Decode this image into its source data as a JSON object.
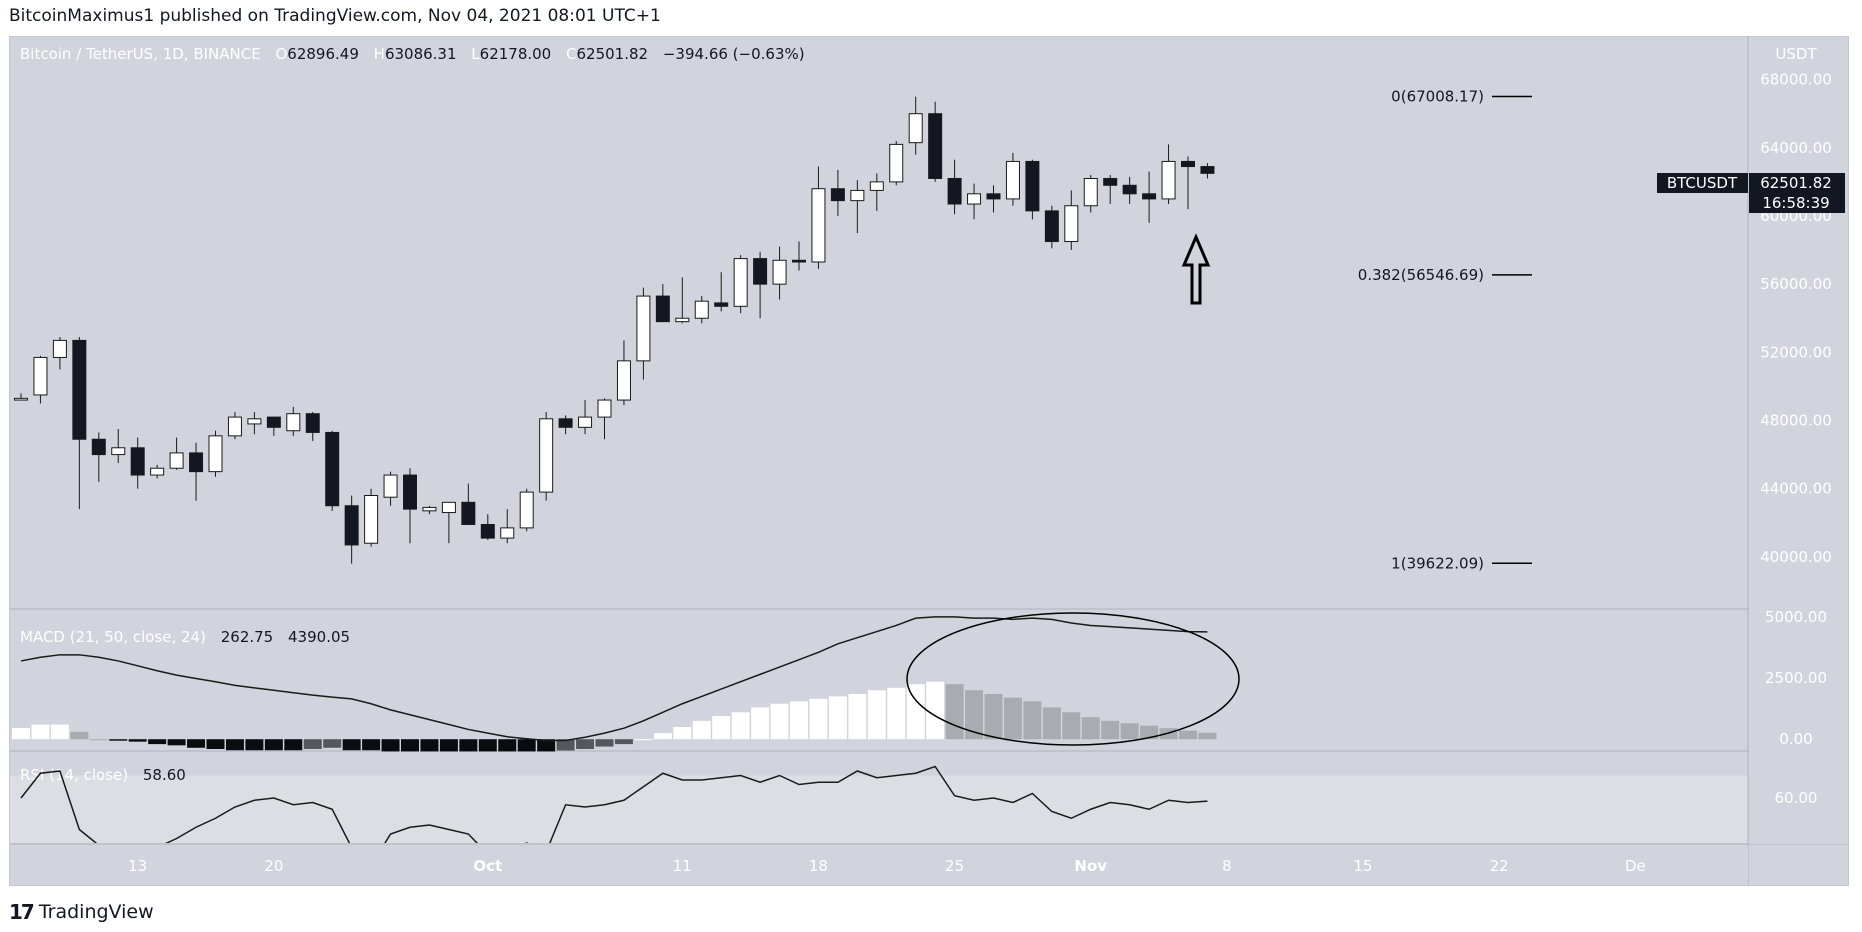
{
  "header": {
    "published_text": "BitcoinMaximus1 published on TradingView.com, Nov 04, 2021 08:01 UTC+1"
  },
  "footer": {
    "brand": "TradingView",
    "logo_glyph": "17"
  },
  "colors": {
    "pane_bg": "#d1d4dc",
    "rsi_band": "#dcdee4",
    "up_body": "#ffffff",
    "down_body": "#131722",
    "hist_up_strong": "#ffffff",
    "hist_up_weak": "#a9abb0",
    "hist_down_strong": "#0b0c10",
    "hist_down_weak": "#55575e",
    "line": "#1a1a1a"
  },
  "chart_data": {
    "type": "candlestick",
    "symbol_line": {
      "name": "Bitcoin / TetherUS, 1D, BINANCE",
      "open_label": "O",
      "open": "62896.49",
      "high_label": "H",
      "high": "63086.31",
      "low_label": "L",
      "low": "62178.00",
      "close_label": "C",
      "close": "62501.82",
      "change": "−394.66 (−0.63%)"
    },
    "price_axis": {
      "currency": "USDT",
      "ylim": [
        37000,
        70500
      ],
      "ticks": [
        "68000.00",
        "64000.00",
        "60000.00",
        "56000.00",
        "52000.00",
        "48000.00",
        "44000.00",
        "40000.00"
      ],
      "tick_values": [
        68000,
        64000,
        60000,
        56000,
        52000,
        48000,
        44000,
        40000
      ]
    },
    "last_price_badge": {
      "symbol": "BTCUSDT",
      "price": "62501.82",
      "countdown": "16:58:39",
      "value": 62501.82
    },
    "x_axis": {
      "labels": [
        "13",
        "20",
        "Oct",
        "11",
        "18",
        "25",
        "Nov",
        "8",
        "15",
        "22",
        "De"
      ],
      "label_day_index": [
        6,
        13,
        24,
        34,
        41,
        48,
        55,
        62,
        69,
        76,
        83
      ]
    },
    "candles": [
      {
        "o": 49200,
        "h": 49600,
        "l": 49200,
        "c": 49300
      },
      {
        "o": 49500,
        "h": 51800,
        "l": 49000,
        "c": 51700
      },
      {
        "o": 51700,
        "h": 52900,
        "l": 51000,
        "c": 52700
      },
      {
        "o": 52700,
        "h": 52900,
        "l": 42800,
        "c": 46900
      },
      {
        "o": 46900,
        "h": 47300,
        "l": 44400,
        "c": 46000
      },
      {
        "o": 46000,
        "h": 47500,
        "l": 45500,
        "c": 46400
      },
      {
        "o": 46400,
        "h": 47000,
        "l": 44000,
        "c": 44800
      },
      {
        "o": 44800,
        "h": 45400,
        "l": 44600,
        "c": 45200
      },
      {
        "o": 45200,
        "h": 47000,
        "l": 45100,
        "c": 46100
      },
      {
        "o": 46100,
        "h": 46700,
        "l": 43300,
        "c": 45000
      },
      {
        "o": 45000,
        "h": 47400,
        "l": 44700,
        "c": 47100
      },
      {
        "o": 47100,
        "h": 48500,
        "l": 46900,
        "c": 48200
      },
      {
        "o": 47800,
        "h": 48500,
        "l": 47200,
        "c": 48100
      },
      {
        "o": 48200,
        "h": 48200,
        "l": 47100,
        "c": 47600
      },
      {
        "o": 47400,
        "h": 48800,
        "l": 47100,
        "c": 48400
      },
      {
        "o": 48400,
        "h": 48500,
        "l": 46800,
        "c": 47300
      },
      {
        "o": 47300,
        "h": 47400,
        "l": 42700,
        "c": 43000
      },
      {
        "o": 43000,
        "h": 43600,
        "l": 39600,
        "c": 40700
      },
      {
        "o": 40800,
        "h": 44000,
        "l": 40600,
        "c": 43600
      },
      {
        "o": 43500,
        "h": 45000,
        "l": 43000,
        "c": 44800
      },
      {
        "o": 44800,
        "h": 45200,
        "l": 40800,
        "c": 42800
      },
      {
        "o": 42700,
        "h": 43000,
        "l": 42500,
        "c": 42900
      },
      {
        "o": 42600,
        "h": 43200,
        "l": 40800,
        "c": 43200
      },
      {
        "o": 43200,
        "h": 44300,
        "l": 42100,
        "c": 41900
      },
      {
        "o": 41900,
        "h": 42500,
        "l": 41000,
        "c": 41100
      },
      {
        "o": 41100,
        "h": 42800,
        "l": 40800,
        "c": 41700
      },
      {
        "o": 41700,
        "h": 44000,
        "l": 41500,
        "c": 43800
      },
      {
        "o": 43800,
        "h": 48500,
        "l": 43300,
        "c": 48100
      },
      {
        "o": 48100,
        "h": 48300,
        "l": 47200,
        "c": 47600
      },
      {
        "o": 47600,
        "h": 49200,
        "l": 47200,
        "c": 48200
      },
      {
        "o": 48200,
        "h": 49300,
        "l": 46900,
        "c": 49200
      },
      {
        "o": 49200,
        "h": 52700,
        "l": 48900,
        "c": 51500
      },
      {
        "o": 51500,
        "h": 55800,
        "l": 50400,
        "c": 55300
      },
      {
        "o": 55300,
        "h": 56000,
        "l": 53900,
        "c": 53800
      },
      {
        "o": 53800,
        "h": 56400,
        "l": 53700,
        "c": 54000
      },
      {
        "o": 54000,
        "h": 55300,
        "l": 53700,
        "c": 55000
      },
      {
        "o": 54900,
        "h": 56700,
        "l": 54400,
        "c": 54700
      },
      {
        "o": 54700,
        "h": 57700,
        "l": 54300,
        "c": 57500
      },
      {
        "o": 57500,
        "h": 57900,
        "l": 54000,
        "c": 56000
      },
      {
        "o": 56000,
        "h": 58200,
        "l": 55100,
        "c": 57400
      },
      {
        "o": 57400,
        "h": 58500,
        "l": 56800,
        "c": 57300
      },
      {
        "o": 57300,
        "h": 62900,
        "l": 56900,
        "c": 61600
      },
      {
        "o": 61600,
        "h": 62700,
        "l": 60000,
        "c": 60900
      },
      {
        "o": 60900,
        "h": 62100,
        "l": 59000,
        "c": 61500
      },
      {
        "o": 61500,
        "h": 62500,
        "l": 60300,
        "c": 62000
      },
      {
        "o": 62000,
        "h": 64400,
        "l": 61800,
        "c": 64200
      },
      {
        "o": 64300,
        "h": 67000,
        "l": 63600,
        "c": 66000
      },
      {
        "o": 66000,
        "h": 66700,
        "l": 62000,
        "c": 62200
      },
      {
        "o": 62200,
        "h": 63300,
        "l": 60100,
        "c": 60700
      },
      {
        "o": 60700,
        "h": 61900,
        "l": 59800,
        "c": 61300
      },
      {
        "o": 61300,
        "h": 61800,
        "l": 60200,
        "c": 61000
      },
      {
        "o": 61000,
        "h": 63700,
        "l": 60600,
        "c": 63200
      },
      {
        "o": 63200,
        "h": 63300,
        "l": 59800,
        "c": 60300
      },
      {
        "o": 60300,
        "h": 60600,
        "l": 58100,
        "c": 58500
      },
      {
        "o": 58500,
        "h": 61500,
        "l": 58000,
        "c": 60600
      },
      {
        "o": 60600,
        "h": 62400,
        "l": 60200,
        "c": 62200
      },
      {
        "o": 62200,
        "h": 62400,
        "l": 60700,
        "c": 61800
      },
      {
        "o": 61800,
        "h": 62300,
        "l": 60700,
        "c": 61300
      },
      {
        "o": 61300,
        "h": 62600,
        "l": 59600,
        "c": 61000
      },
      {
        "o": 61000,
        "h": 64200,
        "l": 60700,
        "c": 63200
      },
      {
        "o": 63200,
        "h": 63500,
        "l": 60400,
        "c": 62900
      },
      {
        "o": 62900,
        "h": 63100,
        "l": 62200,
        "c": 62500
      }
    ],
    "fib_levels": [
      {
        "label": "0(67008.17)",
        "value": 67008.17
      },
      {
        "label": "0.382(56546.69)",
        "value": 56546.69
      },
      {
        "label": "1(39622.09)",
        "value": 39622.09
      }
    ],
    "macd": {
      "legend_name": "MACD (21, 50, close, 24)",
      "legend_values": [
        "262.75",
        "4390.05"
      ],
      "ylim": [
        -400,
        5200
      ],
      "ticks": [
        "5000.00",
        "2500.00",
        "0.00"
      ],
      "tick_values": [
        5000,
        2500,
        0
      ],
      "line": [
        3200,
        3350,
        3450,
        3450,
        3350,
        3200,
        3000,
        2800,
        2620,
        2480,
        2350,
        2200,
        2100,
        2000,
        1900,
        1800,
        1720,
        1650,
        1450,
        1200,
        1000,
        800,
        600,
        400,
        250,
        100,
        20,
        -50,
        -50,
        80,
        250,
        450,
        750,
        1100,
        1450,
        1750,
        2050,
        2350,
        2650,
        2950,
        3250,
        3550,
        3900,
        4150,
        4400,
        4650,
        4950,
        5000,
        5000,
        4950,
        4950,
        4900,
        4950,
        4900,
        4750,
        4650,
        4600,
        4550,
        4500,
        4450,
        4400,
        4390
      ],
      "histogram": [
        460,
        600,
        600,
        300,
        0,
        -60,
        -100,
        -200,
        -250,
        -350,
        -400,
        -450,
        -450,
        -450,
        -450,
        -400,
        -350,
        -450,
        -450,
        -500,
        -500,
        -500,
        -500,
        -500,
        -500,
        -500,
        -500,
        -500,
        -460,
        -400,
        -300,
        -200,
        0,
        250,
        500,
        750,
        950,
        1100,
        1300,
        1450,
        1550,
        1650,
        1750,
        1850,
        2000,
        2100,
        2250,
        2350,
        2250,
        2000,
        1850,
        1700,
        1550,
        1300,
        1100,
        900,
        750,
        650,
        550,
        450,
        350,
        263
      ]
    },
    "rsi": {
      "legend_name": "RSI (14, close)",
      "legend_value": "58.60",
      "ylim": [
        40,
        80
      ],
      "ticks": [
        "60.00"
      ],
      "tick_values": [
        60
      ],
      "band": [
        30,
        70
      ],
      "line": [
        60,
        71,
        72,
        46,
        39,
        34,
        36,
        38,
        42,
        47,
        51,
        56,
        59,
        60,
        57,
        58,
        55,
        38,
        30,
        44,
        47,
        48,
        46,
        44,
        35,
        34,
        40,
        36,
        57,
        56,
        57,
        59,
        65,
        71,
        68,
        68,
        69,
        70,
        67,
        70,
        66,
        67,
        67,
        72,
        69,
        70,
        71,
        74,
        61,
        59,
        60,
        58,
        62,
        54,
        51,
        55,
        58,
        57,
        55,
        59,
        58,
        58.6
      ]
    }
  }
}
